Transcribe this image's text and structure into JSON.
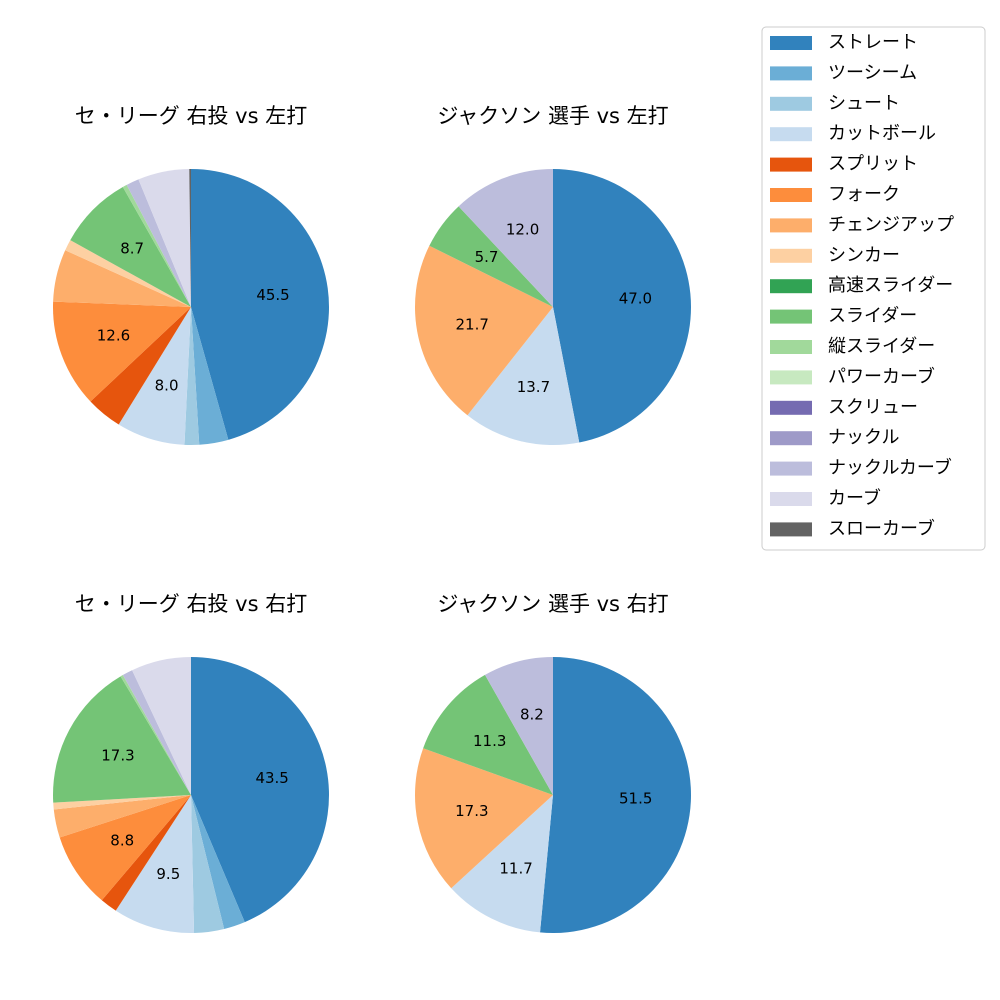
{
  "chart_data": [
    {
      "type": "pie",
      "title": "セ・リーグ 右投 vs 左打",
      "categories": [
        "ストレート",
        "ツーシーム",
        "シュート",
        "カットボール",
        "スプリット",
        "フォーク",
        "チェンジアップ",
        "シンカー",
        "高速スライダー",
        "スライダー",
        "縦スライダー",
        "パワーカーブ",
        "スクリュー",
        "ナックル",
        "ナックルカーブ",
        "カーブ",
        "スローカーブ"
      ],
      "colors": [
        "#3182bd",
        "#6baed6",
        "#9ecae1",
        "#c6dbef",
        "#e6550d",
        "#fd8d3c",
        "#fdae6b",
        "#fdd0a2",
        "#31a354",
        "#74c476",
        "#a1d99b",
        "#c7e9c0",
        "#756bb1",
        "#9e9ac8",
        "#bcbddc",
        "#dadaeb",
        "#636363"
      ],
      "values": [
        45.5,
        3.4,
        1.7,
        8.0,
        4.2,
        12.6,
        6.1,
        1.3,
        0,
        8.7,
        0.5,
        0,
        0,
        0,
        1.5,
        6.0,
        0.2
      ],
      "value_labels": [
        "45.5",
        null,
        null,
        "8.0",
        null,
        "12.6",
        null,
        null,
        null,
        "8.7",
        null,
        null,
        null,
        null,
        null,
        null,
        null
      ]
    },
    {
      "type": "pie",
      "title": "ジャクソン 選手 vs 左打",
      "categories": [
        "ストレート",
        "ツーシーム",
        "シュート",
        "カットボール",
        "スプリット",
        "フォーク",
        "チェンジアップ",
        "シンカー",
        "高速スライダー",
        "スライダー",
        "縦スライダー",
        "パワーカーブ",
        "スクリュー",
        "ナックル",
        "ナックルカーブ",
        "カーブ",
        "スローカーブ"
      ],
      "colors": [
        "#3182bd",
        "#6baed6",
        "#9ecae1",
        "#c6dbef",
        "#e6550d",
        "#fd8d3c",
        "#fdae6b",
        "#fdd0a2",
        "#31a354",
        "#74c476",
        "#a1d99b",
        "#c7e9c0",
        "#756bb1",
        "#9e9ac8",
        "#bcbddc",
        "#dadaeb",
        "#636363"
      ],
      "values": [
        47.0,
        0,
        0,
        13.7,
        0,
        0,
        21.7,
        0,
        0,
        5.7,
        0,
        0,
        0,
        0,
        12.0,
        0,
        0
      ],
      "value_labels": [
        "47.0",
        null,
        null,
        "13.7",
        null,
        null,
        "21.7",
        null,
        null,
        "5.7",
        null,
        null,
        null,
        null,
        "12.0",
        null,
        null
      ]
    },
    {
      "type": "pie",
      "title": "セ・リーグ 右投 vs 右打",
      "categories": [
        "ストレート",
        "ツーシーム",
        "シュート",
        "カットボール",
        "スプリット",
        "フォーク",
        "チェンジアップ",
        "シンカー",
        "高速スライダー",
        "スライダー",
        "縦スライダー",
        "パワーカーブ",
        "スクリュー",
        "ナックル",
        "ナックルカーブ",
        "カーブ",
        "スローカーブ"
      ],
      "colors": [
        "#3182bd",
        "#6baed6",
        "#9ecae1",
        "#c6dbef",
        "#e6550d",
        "#fd8d3c",
        "#fdae6b",
        "#fdd0a2",
        "#31a354",
        "#74c476",
        "#a1d99b",
        "#c7e9c0",
        "#756bb1",
        "#9e9ac8",
        "#bcbddc",
        "#dadaeb",
        "#636363"
      ],
      "values": [
        43.5,
        2.5,
        3.5,
        9.5,
        2.0,
        8.8,
        3.3,
        0.8,
        0,
        17.3,
        0.3,
        0,
        0,
        0,
        1.2,
        7.0,
        0
      ],
      "value_labels": [
        "43.5",
        null,
        null,
        "9.5",
        null,
        "8.8",
        null,
        null,
        null,
        "17.3",
        null,
        null,
        null,
        null,
        null,
        null,
        null
      ]
    },
    {
      "type": "pie",
      "title": "ジャクソン 選手 vs 右打",
      "categories": [
        "ストレート",
        "ツーシーム",
        "シュート",
        "カットボール",
        "スプリット",
        "フォーク",
        "チェンジアップ",
        "シンカー",
        "高速スライダー",
        "スライダー",
        "縦スライダー",
        "パワーカーブ",
        "スクリュー",
        "ナックル",
        "ナックルカーブ",
        "カーブ",
        "スローカーブ"
      ],
      "colors": [
        "#3182bd",
        "#6baed6",
        "#9ecae1",
        "#c6dbef",
        "#e6550d",
        "#fd8d3c",
        "#fdae6b",
        "#fdd0a2",
        "#31a354",
        "#74c476",
        "#a1d99b",
        "#c7e9c0",
        "#756bb1",
        "#9e9ac8",
        "#bcbddc",
        "#dadaeb",
        "#636363"
      ],
      "values": [
        51.5,
        0,
        0,
        11.7,
        0,
        0,
        17.3,
        0,
        0,
        11.3,
        0,
        0,
        0,
        0,
        8.2,
        0,
        0
      ],
      "value_labels": [
        "51.5",
        null,
        null,
        "11.7",
        null,
        null,
        "17.3",
        null,
        null,
        "11.3",
        null,
        null,
        null,
        null,
        "8.2",
        null,
        null
      ]
    }
  ]
}
